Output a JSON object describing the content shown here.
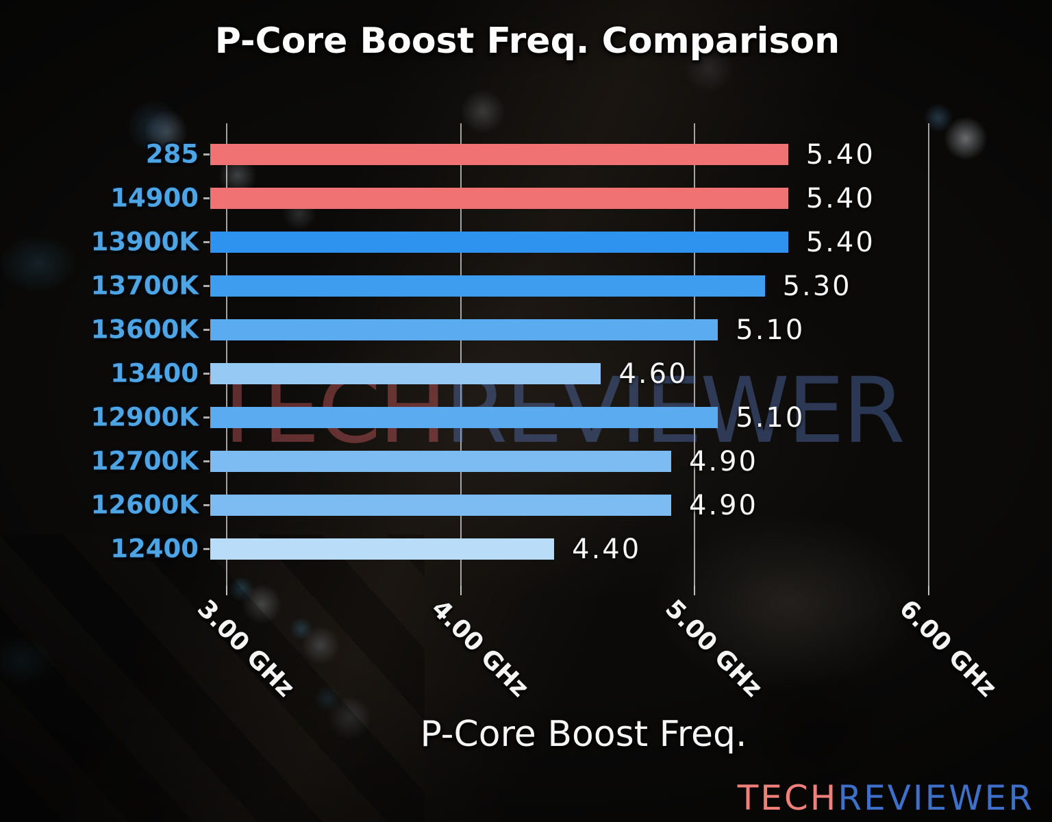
{
  "title": "P-Core Boost Freq. Comparison",
  "watermark": {
    "tech": "TECH",
    "reviewer": "REVIEWER"
  },
  "logo": {
    "tech": "TECH",
    "reviewer": "REVIEWER"
  },
  "colors": {
    "category_label_blue": "#4ea5e5",
    "value_label_white": "#f7f7f7",
    "red_bar": "#f17272",
    "blue_bar_strong": "#2e93ee",
    "logo_red": "#f0807a",
    "logo_blue": "#3e70c9"
  },
  "chart_data": {
    "type": "bar",
    "orientation": "horizontal",
    "title": "P-Core Boost Freq. Comparison",
    "xlabel": "P-Core Boost Freq.",
    "ylabel": "",
    "grid": true,
    "legend": null,
    "xlim": [
      2.93,
      6.32
    ],
    "xticks": [
      {
        "value": 3.0,
        "label": "3.00 GHz"
      },
      {
        "value": 4.0,
        "label": "4.00 GHz"
      },
      {
        "value": 5.0,
        "label": "5.00 GHz"
      },
      {
        "value": 6.0,
        "label": "6.00 GHz"
      }
    ],
    "categories": [
      "285",
      "14900",
      "13900K",
      "13700K",
      "13600K",
      "13400",
      "12900K",
      "12700K",
      "12600K",
      "12400"
    ],
    "values": [
      5.4,
      5.4,
      5.4,
      5.3,
      5.1,
      4.6,
      5.1,
      4.9,
      4.9,
      4.4
    ],
    "value_labels": [
      "5.40",
      "5.40",
      "5.40",
      "5.30",
      "5.10",
      "4.60",
      "5.10",
      "4.90",
      "4.90",
      "4.40"
    ],
    "bar_colors": [
      "#f17272",
      "#f17272",
      "#2e93ee",
      "#3f9df0",
      "#5aabf0",
      "#97c9f5",
      "#5aabf0",
      "#7cbcf3",
      "#7cbcf3",
      "#b9dcf8"
    ]
  }
}
